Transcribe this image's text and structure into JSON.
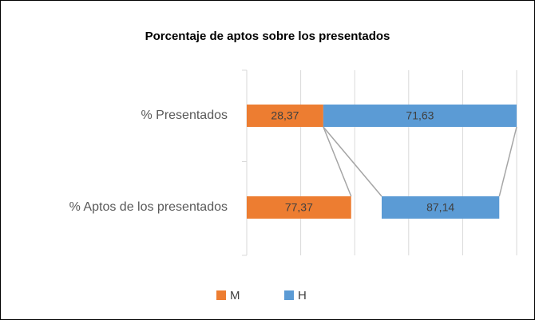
{
  "chart_data": {
    "type": "bar",
    "orientation": "horizontal",
    "title": "Porcentaje de aptos sobre los presentados",
    "categories": [
      "% Presentados",
      "% Aptos de los presentados"
    ],
    "series": [
      {
        "name": "M",
        "color": "#ed7d31",
        "values": [
          28.37,
          77.37
        ],
        "value_labels": [
          "28,37",
          "77,37"
        ]
      },
      {
        "name": "H",
        "color": "#5b9bd5",
        "values": [
          71.63,
          87.14
        ],
        "value_labels": [
          "71,63",
          "87,14"
        ]
      }
    ],
    "xlim": [
      0,
      100
    ],
    "xticks": [
      0,
      20,
      40,
      60,
      80,
      100
    ],
    "grid": true,
    "legend": "bottom"
  }
}
